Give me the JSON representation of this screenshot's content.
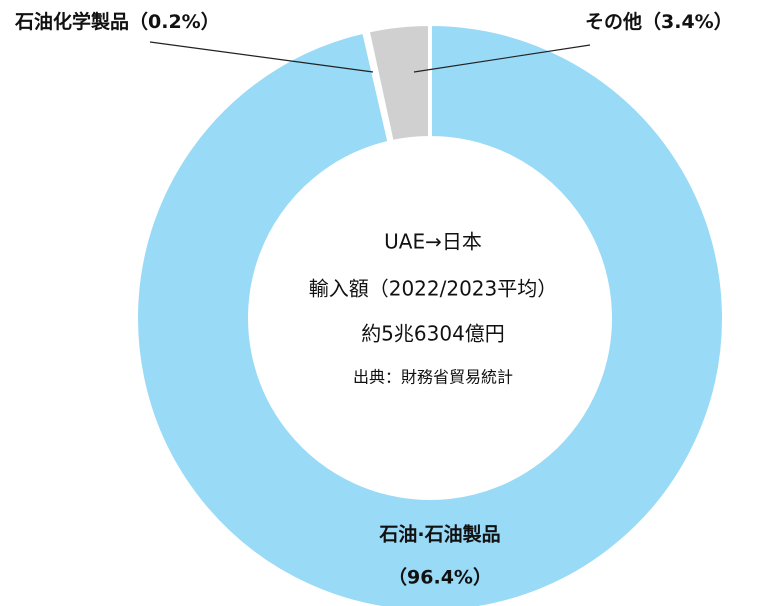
{
  "chart_data": {
    "type": "donut",
    "categories": [
      "石油·石油製品",
      "石油化学製品",
      "その他"
    ],
    "values": [
      96.4,
      0.2,
      3.4
    ],
    "value_labels": [
      "（96.4%）",
      "（0.2%）",
      "（3.4%）"
    ],
    "colors": [
      "#99daf7",
      "#b8e3f7",
      "#d0d0d0"
    ],
    "annotations": [
      "UAE→日本",
      "輸入額（2022/2023平均）",
      "約5兆6304億円",
      "出典：財務省貿易統計"
    ]
  }
}
